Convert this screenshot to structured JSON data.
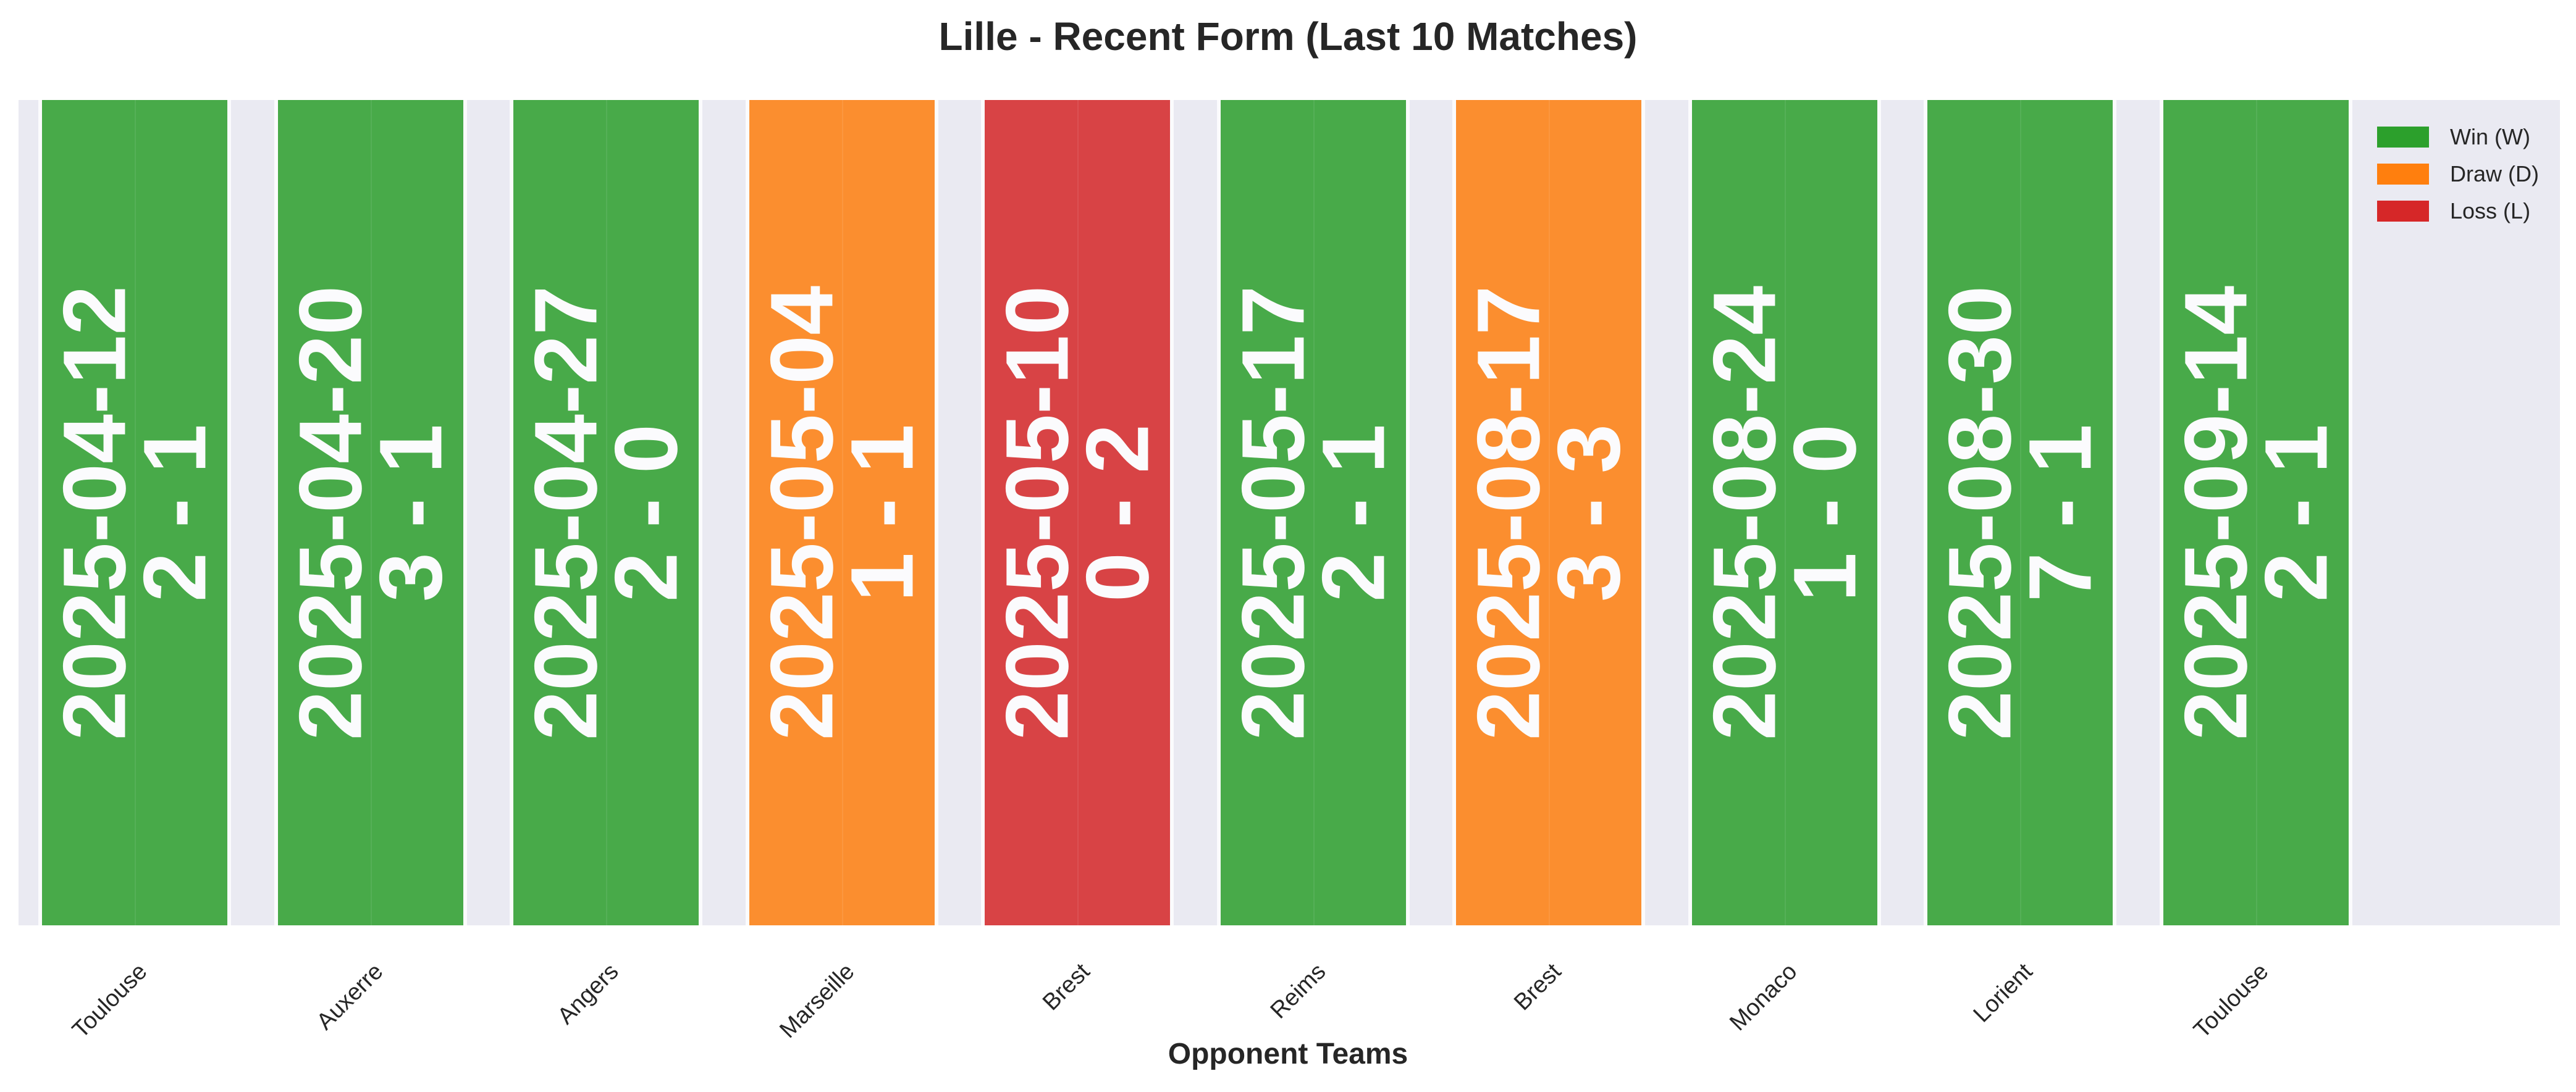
{
  "chart_data": {
    "type": "bar",
    "title": "Lille - Recent Form (Last 10 Matches)",
    "xlabel": "Opponent Teams",
    "ylabel": "",
    "grid": true,
    "legend_position": "top-right",
    "legend": [
      {
        "label": "Win (W)",
        "result": "W",
        "color": "#2ca02c"
      },
      {
        "label": "Draw (D)",
        "result": "D",
        "color": "#ff7f0e"
      },
      {
        "label": "Loss (L)",
        "result": "L",
        "color": "#d62728"
      }
    ],
    "categories": [
      "Toulouse",
      "Auxerre",
      "Angers",
      "Marseille",
      "Brest",
      "Reims",
      "Brest",
      "Monaco",
      "Lorient",
      "Toulouse"
    ],
    "values": [
      1,
      1,
      1,
      1,
      1,
      1,
      1,
      1,
      1,
      1
    ],
    "matches": [
      {
        "opponent": "Toulouse",
        "date": "2025-04-12",
        "score": "2 - 1",
        "result": "W"
      },
      {
        "opponent": "Auxerre",
        "date": "2025-04-20",
        "score": "3 - 1",
        "result": "W"
      },
      {
        "opponent": "Angers",
        "date": "2025-04-27",
        "score": "2 - 0",
        "result": "W"
      },
      {
        "opponent": "Marseille",
        "date": "2025-05-04",
        "score": "1 - 1",
        "result": "D"
      },
      {
        "opponent": "Brest",
        "date": "2025-05-10",
        "score": "0 - 2",
        "result": "L"
      },
      {
        "opponent": "Reims",
        "date": "2025-05-17",
        "score": "2 - 1",
        "result": "W"
      },
      {
        "opponent": "Brest",
        "date": "2025-08-17",
        "score": "3 - 3",
        "result": "D"
      },
      {
        "opponent": "Monaco",
        "date": "2025-08-24",
        "score": "1 - 0",
        "result": "W"
      },
      {
        "opponent": "Lorient",
        "date": "2025-08-30",
        "score": "7 - 1",
        "result": "W"
      },
      {
        "opponent": "Toulouse",
        "date": "2025-09-14",
        "score": "2 - 1",
        "result": "W"
      }
    ]
  }
}
